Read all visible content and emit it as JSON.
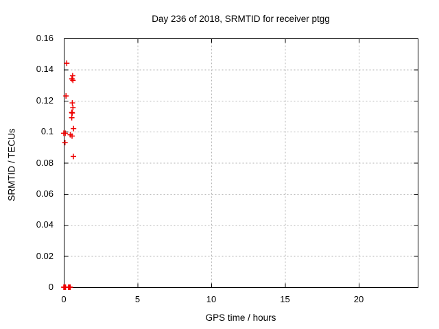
{
  "window": {
    "background": "#ffffff",
    "text_color": "#000000"
  },
  "chart_data": {
    "type": "scatter",
    "title": "Day 236 of 2018, SRMTID for receiver ptgg",
    "xlabel": "GPS time / hours",
    "ylabel": "SRMTID / TECUs",
    "xlim": [
      0,
      24
    ],
    "ylim": [
      0,
      0.16
    ],
    "xticks": {
      "values": [
        0,
        5,
        10,
        15,
        20
      ],
      "labels": [
        "0",
        "5",
        "10",
        "15",
        "20"
      ]
    },
    "yticks": {
      "values": [
        0,
        0.02,
        0.04,
        0.06,
        0.08,
        0.1,
        0.12,
        0.14,
        0.16
      ],
      "labels": [
        "0",
        "0.02",
        "0.04",
        "0.06",
        "0.08",
        "0.1",
        "0.12",
        "0.14",
        "0.16"
      ]
    },
    "grid": {
      "enabled": true,
      "style": "dashed",
      "color": "#b3b3b3"
    },
    "legend": "none",
    "marker": {
      "shape": "plus",
      "color": "#ee0000",
      "size": 9
    },
    "axis_color": "#000000",
    "series": [
      {
        "name": "SRMTID",
        "points": [
          [
            0.2,
            0.144
          ],
          [
            0.6,
            0.136
          ],
          [
            0.55,
            0.134
          ],
          [
            0.62,
            0.133
          ],
          [
            0.15,
            0.123
          ],
          [
            0.58,
            0.1185
          ],
          [
            0.62,
            0.1155
          ],
          [
            0.54,
            0.1125
          ],
          [
            0.57,
            0.112
          ],
          [
            0.54,
            0.109
          ],
          [
            0.66,
            0.102
          ],
          [
            0.0,
            0.099
          ],
          [
            0.1,
            0.099
          ],
          [
            0.44,
            0.098
          ],
          [
            0.56,
            0.0972
          ],
          [
            0.08,
            0.093
          ],
          [
            0.65,
            0.084
          ],
          [
            0.0,
            0.0
          ],
          [
            0.04,
            0.0
          ],
          [
            0.08,
            0.0
          ],
          [
            0.12,
            0.0
          ],
          [
            0.32,
            0.0
          ],
          [
            0.36,
            0.0
          ],
          [
            0.4,
            0.0
          ],
          [
            0.44,
            0.0
          ]
        ]
      }
    ]
  }
}
